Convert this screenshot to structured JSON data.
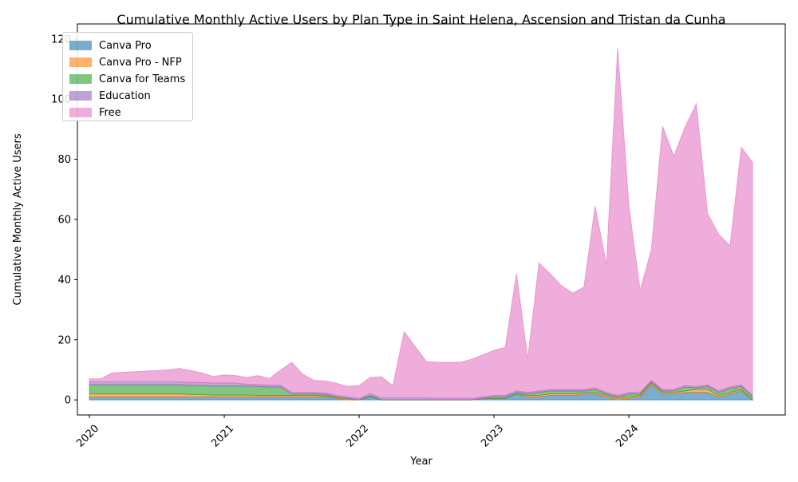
{
  "chart_data": {
    "type": "area",
    "stacked": true,
    "title": "Cumulative Monthly Active Users by Plan Type in Saint Helena, Ascension and Tristan da Cunha",
    "xlabel": "Year",
    "ylabel": "Cumulative Monthly Active Users",
    "x_ticks": [
      "2020",
      "2021",
      "2022",
      "2023",
      "2024"
    ],
    "y_ticks": [
      0,
      20,
      40,
      60,
      80,
      100,
      120
    ],
    "ylim": [
      -5,
      125
    ],
    "x": [
      "2020-01",
      "2020-02",
      "2020-03",
      "2020-04",
      "2020-05",
      "2020-06",
      "2020-07",
      "2020-08",
      "2020-09",
      "2020-10",
      "2020-11",
      "2020-12",
      "2021-01",
      "2021-02",
      "2021-03",
      "2021-04",
      "2021-05",
      "2021-06",
      "2021-07",
      "2021-08",
      "2021-09",
      "2021-10",
      "2021-11",
      "2021-12",
      "2022-01",
      "2022-02",
      "2022-03",
      "2022-04",
      "2022-05",
      "2022-06",
      "2022-07",
      "2022-08",
      "2022-09",
      "2022-10",
      "2022-11",
      "2022-12",
      "2023-01",
      "2023-02",
      "2023-03",
      "2023-04",
      "2023-05",
      "2023-06",
      "2023-07",
      "2023-08",
      "2023-09",
      "2023-10",
      "2023-11",
      "2023-12",
      "2024-01",
      "2024-02",
      "2024-03",
      "2024-04",
      "2024-05",
      "2024-06",
      "2024-07",
      "2024-08",
      "2024-09",
      "2024-10",
      "2024-11",
      "2024-12"
    ],
    "legend_position": "upper-left",
    "grid": false,
    "series": [
      {
        "name": "Canva Pro",
        "color": "#1f77b4",
        "values": [
          1,
          1,
          1,
          1,
          1,
          1,
          1,
          1,
          1,
          1,
          1,
          1,
          1,
          1,
          1,
          1,
          1,
          1,
          1,
          1,
          1,
          1,
          0.5,
          0,
          0,
          1,
          0,
          0,
          0,
          0,
          0,
          0,
          0,
          0,
          0,
          0.5,
          0.5,
          0.5,
          2,
          1,
          1,
          1.5,
          1.5,
          1.5,
          2,
          2,
          1,
          0,
          0.5,
          1,
          5,
          2,
          2,
          2.5,
          2.5,
          2.5,
          1,
          2,
          3,
          0
        ]
      },
      {
        "name": "Canva Pro - NFP",
        "color": "#ff7f0e",
        "values": [
          1,
          1,
          1,
          1,
          1,
          1,
          1,
          1,
          1,
          0.8,
          0.8,
          0.6,
          0.6,
          0.6,
          0.6,
          0.5,
          0.5,
          0.5,
          0.5,
          0.5,
          0.5,
          0.3,
          0.3,
          0.3,
          0,
          0,
          0,
          0,
          0,
          0,
          0,
          0,
          0,
          0,
          0,
          0,
          0,
          0,
          0,
          0.5,
          0.5,
          0.5,
          0.5,
          0.5,
          0.5,
          0.5,
          0.5,
          0.5,
          0.5,
          0.5,
          0.5,
          0.5,
          0.5,
          0.5,
          1,
          1,
          0.5,
          0.5,
          0.5,
          0
        ]
      },
      {
        "name": "Canva for Teams",
        "color": "#2ca02c",
        "values": [
          3,
          3,
          3,
          3,
          3,
          3,
          3,
          3,
          3,
          3,
          3,
          3,
          3,
          3,
          3,
          3,
          2.8,
          2.8,
          0.5,
          0.5,
          0.5,
          0.5,
          0.2,
          0.2,
          0,
          0.5,
          0,
          0,
          0,
          0,
          0,
          0,
          0,
          0,
          0,
          0,
          0.5,
          0.5,
          0.5,
          0.5,
          1,
          1,
          1,
          1,
          0.5,
          1,
          0.5,
          0.5,
          1,
          0.5,
          0.5,
          0.5,
          0.5,
          1.3,
          0.5,
          1,
          1,
          1.3,
          1,
          1
        ]
      },
      {
        "name": "Education",
        "color": "#9467bd",
        "values": [
          1,
          1,
          1,
          1,
          1,
          1,
          1,
          1,
          1,
          1,
          1,
          1,
          1,
          1,
          0.6,
          0.6,
          0.6,
          0.6,
          0.5,
          0.5,
          0.5,
          0.5,
          0.5,
          0.5,
          0.5,
          0.7,
          0.7,
          0.7,
          0.7,
          0.7,
          0.7,
          0.5,
          0.5,
          0.5,
          0.5,
          0.5,
          0.5,
          0.5,
          0.5,
          0.5,
          0.5,
          0.5,
          0.5,
          0.5,
          0.5,
          0.5,
          0.5,
          0.5,
          0.5,
          0.5,
          0.5,
          0.5,
          0.5,
          0.5,
          0.5,
          0.5,
          0.5,
          0.5,
          0.5,
          0.5
        ]
      },
      {
        "name": "Free",
        "color": "#e377c2",
        "values": [
          1,
          1,
          3,
          3.2,
          3.4,
          3.6,
          3.8,
          4,
          4.5,
          4,
          3.2,
          2.2,
          2.7,
          2.5,
          2.3,
          3,
          2.2,
          5,
          10,
          6,
          4,
          4,
          4,
          3.5,
          4.3,
          5.3,
          7,
          4,
          22,
          17,
          12,
          12,
          12,
          12,
          13,
          14,
          15,
          16,
          39,
          11.2,
          42.5,
          38.5,
          34.5,
          32,
          34,
          60.5,
          42.5,
          115.5,
          62,
          34,
          43.5,
          87.5,
          77.5,
          86,
          94,
          57,
          52,
          47,
          79,
          77.5
        ]
      }
    ]
  }
}
